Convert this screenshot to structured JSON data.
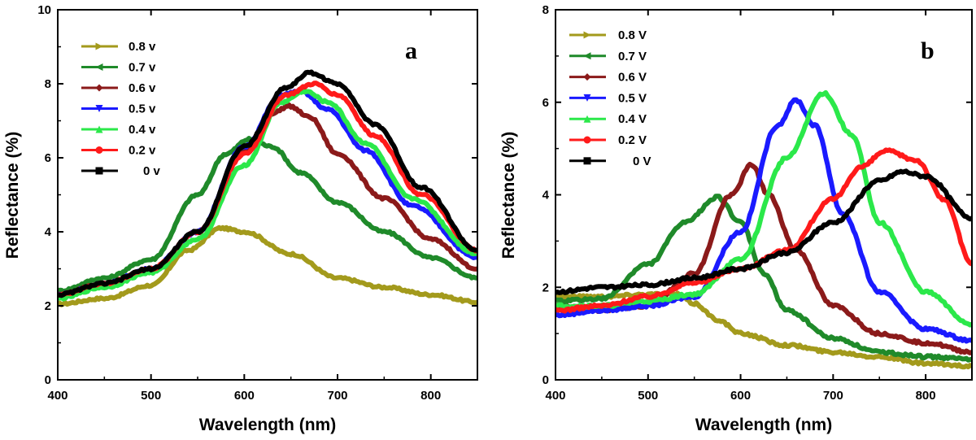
{
  "chart_data": [
    {
      "panel": "a",
      "type": "line",
      "xlabel": "Wavelength (nm)",
      "ylabel": "Reflectance (%)",
      "xlim": [
        400,
        850
      ],
      "ylim": [
        0,
        10
      ],
      "xticks": [
        400,
        500,
        600,
        700,
        800
      ],
      "yticks": [
        0,
        2,
        4,
        6,
        8,
        10
      ],
      "legend_position": "top-left",
      "grid": false,
      "series": [
        {
          "name": "0.8 v",
          "color": "#a39a1c",
          "marker": "triangle-right",
          "x": [
            400,
            450,
            500,
            540,
            575,
            600,
            650,
            700,
            750,
            800,
            850
          ],
          "y": [
            2.05,
            2.2,
            2.55,
            3.5,
            4.1,
            4.0,
            3.4,
            2.75,
            2.5,
            2.3,
            2.1
          ]
        },
        {
          "name": "0.7 v",
          "color": "#1f8a2a",
          "marker": "triangle-left",
          "x": [
            400,
            450,
            500,
            550,
            580,
            605,
            630,
            660,
            700,
            750,
            800,
            850
          ],
          "y": [
            2.4,
            2.75,
            3.25,
            5.0,
            6.1,
            6.5,
            6.3,
            5.6,
            4.8,
            4.0,
            3.3,
            2.75
          ]
        },
        {
          "name": "0.6 v",
          "color": "#8b1a1a",
          "marker": "diamond",
          "x": [
            400,
            450,
            500,
            550,
            600,
            630,
            648,
            670,
            700,
            750,
            800,
            850
          ],
          "y": [
            2.3,
            2.6,
            2.95,
            4.0,
            6.2,
            7.2,
            7.4,
            7.1,
            6.1,
            4.9,
            3.8,
            3.0
          ]
        },
        {
          "name": "0.5 v",
          "color": "#1a1aff",
          "marker": "triangle-down",
          "x": [
            400,
            450,
            500,
            550,
            600,
            640,
            660,
            690,
            730,
            780,
            850
          ],
          "y": [
            2.3,
            2.6,
            3.0,
            4.0,
            6.3,
            7.7,
            7.8,
            7.3,
            6.2,
            4.7,
            3.3
          ]
        },
        {
          "name": "0.4 v",
          "color": "#2be84a",
          "marker": "triangle-up",
          "x": [
            400,
            450,
            500,
            550,
            600,
            640,
            665,
            690,
            730,
            780,
            850
          ],
          "y": [
            2.2,
            2.5,
            2.9,
            3.8,
            5.8,
            7.5,
            7.8,
            7.5,
            6.4,
            4.9,
            3.4
          ]
        },
        {
          "name": "0.2 v",
          "color": "#ff1a1a",
          "marker": "circle",
          "x": [
            400,
            450,
            500,
            550,
            600,
            645,
            675,
            700,
            740,
            790,
            850
          ],
          "y": [
            2.3,
            2.6,
            3.0,
            4.0,
            6.1,
            7.7,
            8.0,
            7.7,
            6.6,
            5.0,
            3.5
          ]
        },
        {
          "name": "0 v",
          "color": "#000000",
          "marker": "square",
          "x": [
            400,
            450,
            500,
            550,
            600,
            645,
            670,
            700,
            740,
            790,
            850
          ],
          "y": [
            2.3,
            2.6,
            3.0,
            4.0,
            6.3,
            7.9,
            8.3,
            8.0,
            6.9,
            5.2,
            3.5
          ]
        }
      ]
    },
    {
      "panel": "b",
      "type": "line",
      "xlabel": "Wavelength (nm)",
      "ylabel": "Reflectance (%)",
      "xlim": [
        400,
        850
      ],
      "ylim": [
        0,
        8
      ],
      "xticks": [
        400,
        500,
        600,
        700,
        800
      ],
      "yticks": [
        0,
        2,
        4,
        6,
        8
      ],
      "legend_position": "top-left",
      "grid": false,
      "series": [
        {
          "name": "0.8 V",
          "color": "#a39a1c",
          "marker": "triangle-right",
          "x": [
            400,
            450,
            500,
            530,
            550,
            575,
            600,
            650,
            700,
            750,
            800,
            850
          ],
          "y": [
            1.8,
            1.8,
            1.85,
            1.85,
            1.65,
            1.3,
            1.0,
            0.75,
            0.6,
            0.5,
            0.35,
            0.3
          ]
        },
        {
          "name": "0.7 V",
          "color": "#1f8a2a",
          "marker": "triangle-left",
          "x": [
            400,
            450,
            500,
            540,
            575,
            600,
            625,
            650,
            700,
            750,
            800,
            850
          ],
          "y": [
            1.7,
            1.75,
            2.5,
            3.4,
            3.95,
            3.4,
            2.3,
            1.5,
            0.9,
            0.6,
            0.5,
            0.45
          ]
        },
        {
          "name": "0.6 V",
          "color": "#8b1a1a",
          "marker": "diamond",
          "x": [
            400,
            450,
            500,
            550,
            590,
            612,
            630,
            660,
            700,
            750,
            800,
            850
          ],
          "y": [
            1.6,
            1.5,
            1.6,
            2.3,
            4.0,
            4.65,
            4.0,
            2.8,
            1.6,
            1.0,
            0.8,
            0.6
          ]
        },
        {
          "name": "0.5 V",
          "color": "#1a1aff",
          "marker": "triangle-down",
          "x": [
            400,
            450,
            500,
            550,
            600,
            640,
            660,
            680,
            710,
            750,
            800,
            850
          ],
          "y": [
            1.4,
            1.5,
            1.6,
            1.8,
            3.2,
            5.5,
            6.05,
            5.5,
            3.6,
            1.9,
            1.1,
            0.85
          ]
        },
        {
          "name": "0.4 V",
          "color": "#2be84a",
          "marker": "triangle-up",
          "x": [
            400,
            450,
            500,
            550,
            600,
            650,
            690,
            720,
            750,
            800,
            850
          ],
          "y": [
            1.6,
            1.6,
            1.7,
            1.85,
            2.6,
            4.8,
            6.2,
            5.3,
            3.4,
            1.9,
            1.2
          ]
        },
        {
          "name": "0.2 V",
          "color": "#ff1a1a",
          "marker": "circle",
          "x": [
            400,
            450,
            500,
            550,
            600,
            650,
            700,
            730,
            757,
            790,
            820,
            850
          ],
          "y": [
            1.5,
            1.6,
            1.8,
            2.1,
            2.4,
            2.8,
            3.9,
            4.6,
            4.95,
            4.75,
            3.9,
            2.5
          ]
        },
        {
          "name": "0 V",
          "color": "#000000",
          "marker": "square",
          "x": [
            400,
            450,
            500,
            550,
            600,
            650,
            700,
            750,
            775,
            800,
            850
          ],
          "y": [
            1.9,
            2.0,
            2.05,
            2.2,
            2.4,
            2.75,
            3.4,
            4.3,
            4.5,
            4.4,
            3.5
          ]
        }
      ]
    }
  ]
}
